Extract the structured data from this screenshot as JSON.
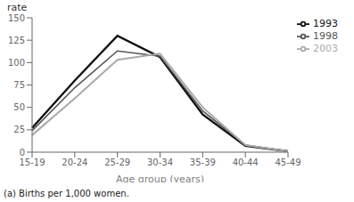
{
  "chart_data": {
    "type": "line",
    "categories": [
      "15-19",
      "20-24",
      "25-29",
      "30-34",
      "35-39",
      "40-44",
      "45-49"
    ],
    "series": [
      {
        "name": "1993",
        "color": "#111111",
        "values": [
          27,
          80,
          130,
          106,
          42,
          7,
          1
        ]
      },
      {
        "name": "1998",
        "color": "#555555",
        "values": [
          24,
          72,
          113,
          107,
          46,
          8,
          1
        ]
      },
      {
        "name": "2003",
        "color": "#aaaaaa",
        "values": [
          19,
          60,
          103,
          110,
          50,
          8,
          1
        ]
      }
    ],
    "xlabel": "Age group (years)",
    "ylabel": "rate",
    "ylim": [
      0,
      150
    ],
    "yticks": [
      0,
      25,
      50,
      75,
      100,
      125,
      150
    ],
    "grid": false,
    "legend": "right",
    "annotations": [
      "(a) Births per 1,000 women."
    ]
  }
}
